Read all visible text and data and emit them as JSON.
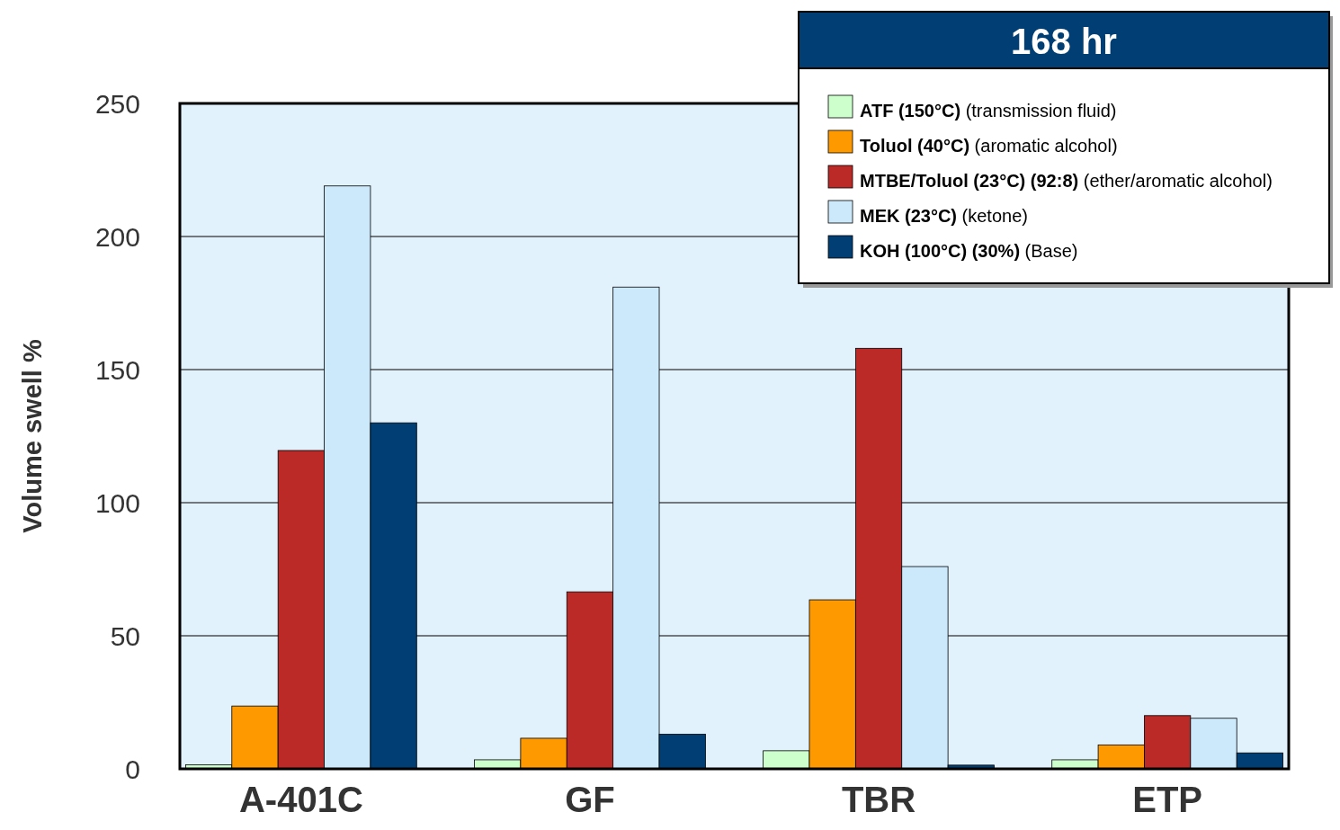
{
  "chart_data": {
    "type": "bar",
    "legend_title": "168 hr",
    "ylabel": "Volume swell %",
    "categories": [
      "A-401C",
      "GF",
      "TBR",
      "ETP"
    ],
    "series": [
      {
        "name": "ATF (150°C) (transmission fluid)",
        "color": "#ccffcc",
        "values": [
          1.5,
          3.4,
          6.8,
          3.4
        ]
      },
      {
        "name": "Toluol (40°C) (aromatic alcohol)",
        "color": "#ff9900",
        "values": [
          23.6,
          11.5,
          63.5,
          9
        ]
      },
      {
        "name": "MTBE/Toluol (23°C) (92:8) (ether/aromatic alcohol)",
        "color": "#bb2a26",
        "values": [
          119.6,
          66.5,
          158,
          20
        ]
      },
      {
        "name": "MEK (23°C) (ketone)",
        "color": "#cce9fb",
        "values": [
          219,
          181,
          76,
          19
        ]
      },
      {
        "name": "KOH (100°C) (30%) (Base)",
        "color": "#003e73",
        "values": [
          130,
          13,
          1.4,
          6
        ]
      }
    ],
    "ylim": [
      0,
      250
    ],
    "yticks": [
      0,
      50,
      100,
      150,
      200,
      250
    ],
    "grid": "y",
    "legend": "top right"
  }
}
